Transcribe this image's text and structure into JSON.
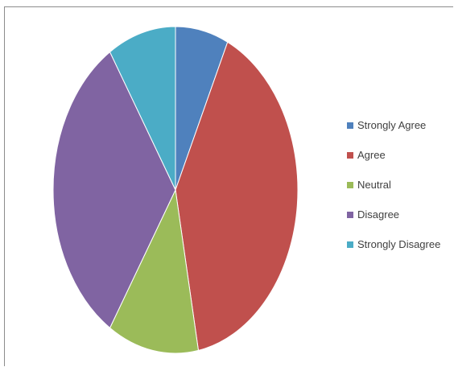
{
  "chart_data": {
    "type": "pie",
    "categories": [
      "Strongly Agree",
      "Agree",
      "Neutral",
      "Disagree",
      "Strongly Disagree"
    ],
    "values": [
      7,
      40,
      12,
      32,
      9
    ],
    "colors": [
      "#4f81bd",
      "#c0504d",
      "#9bbb59",
      "#8064a2",
      "#4bacc6"
    ],
    "title": "",
    "legend_position": "right",
    "start_angle_deg": 0,
    "direction": "clockwise"
  }
}
